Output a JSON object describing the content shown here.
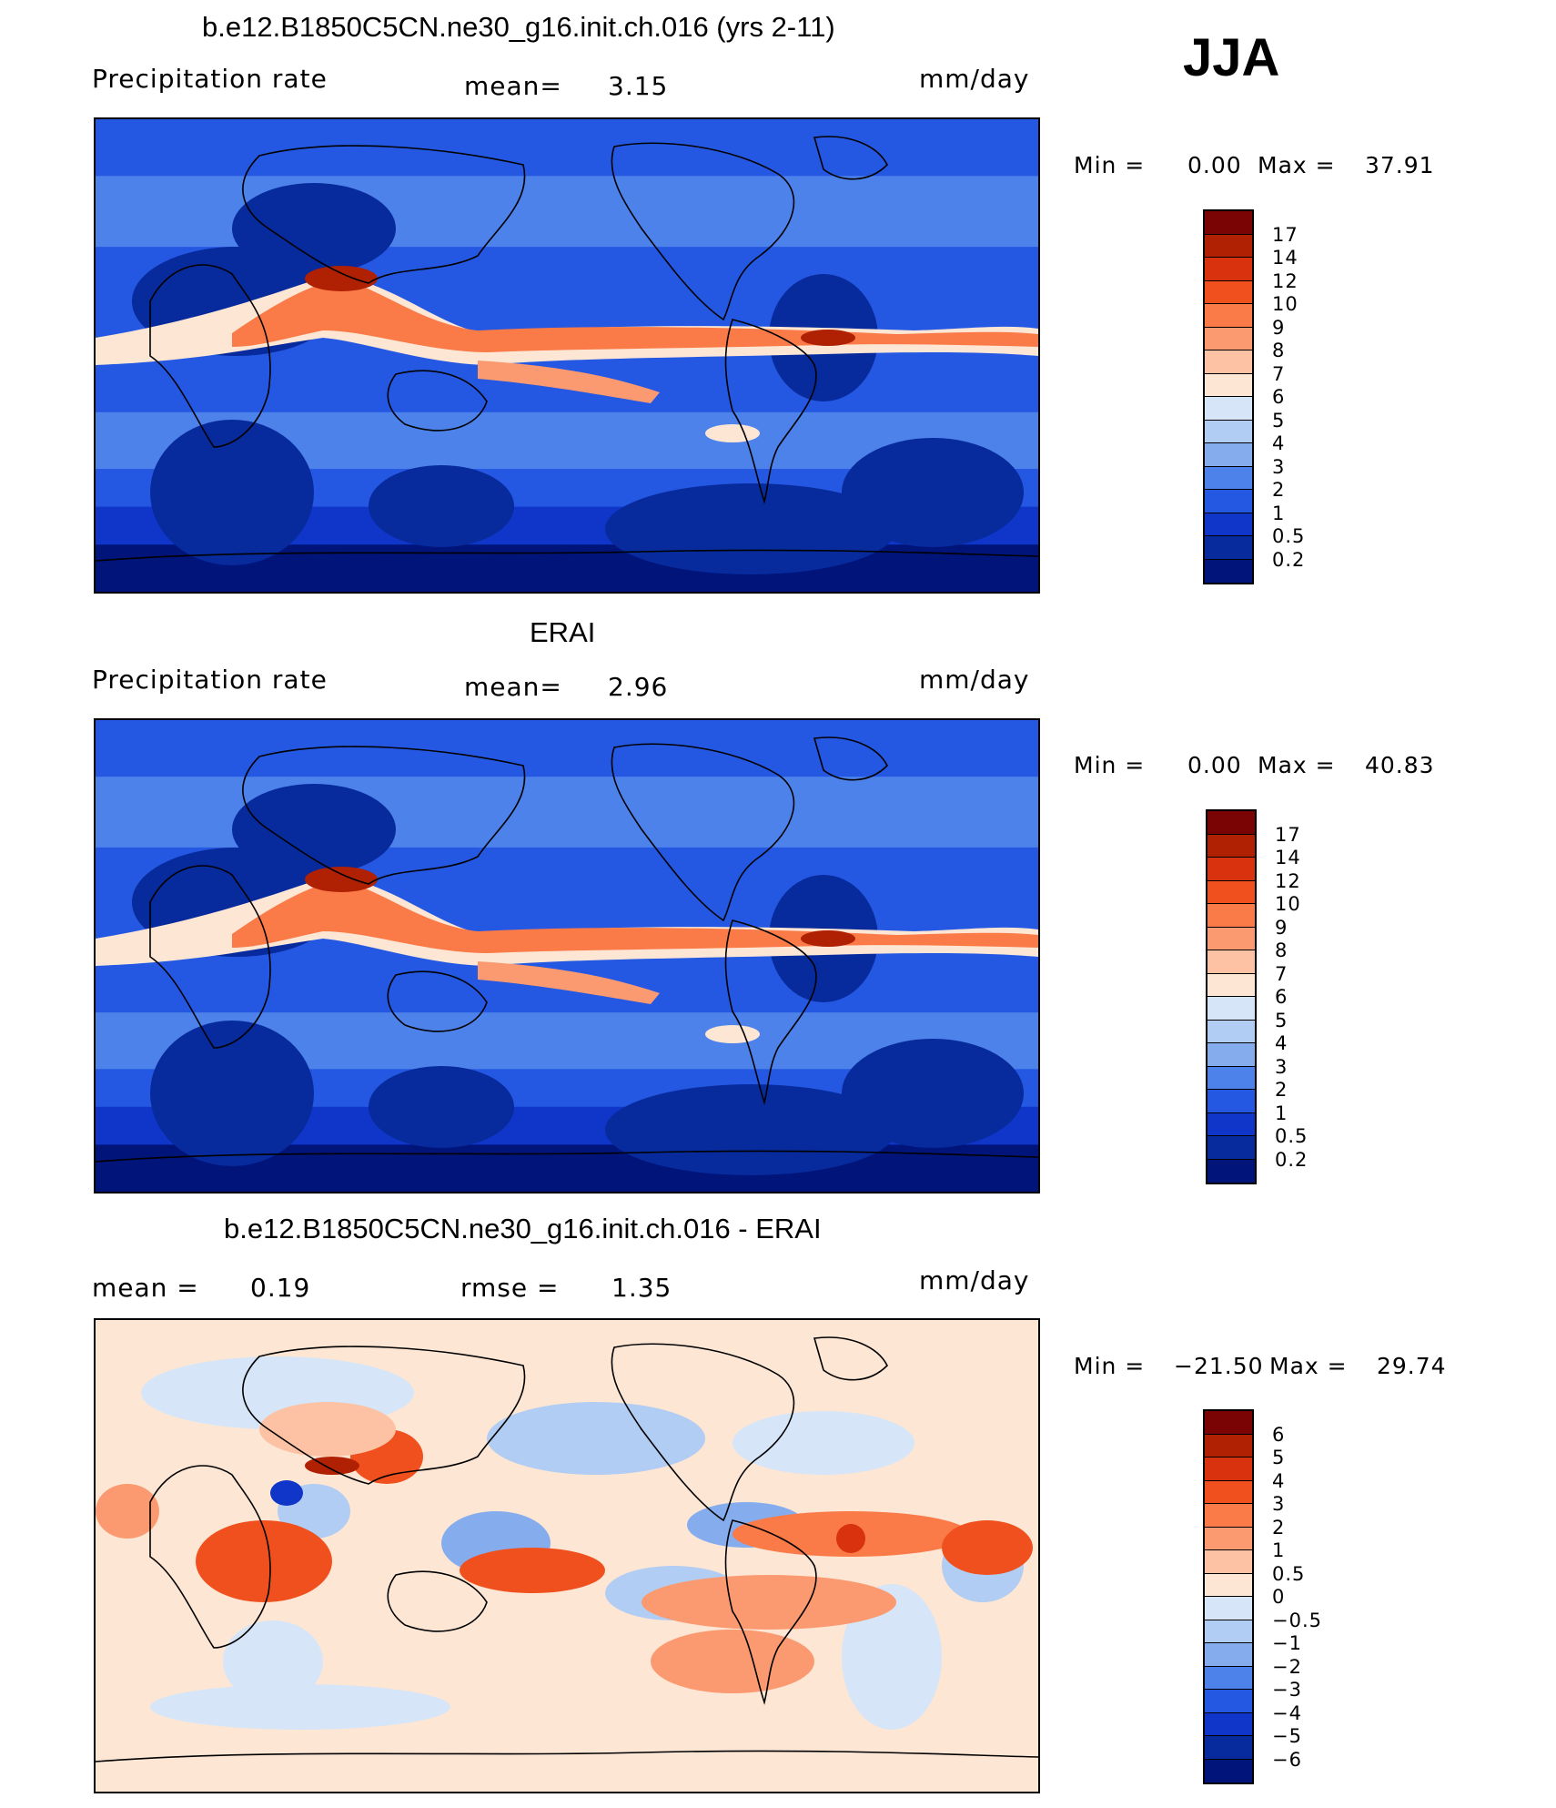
{
  "season": "JJA",
  "panels": [
    {
      "title": "b.e12.B1850C5CN.ne30_g16.init.ch.016 (yrs 2-11)",
      "left_label": "Precipitation  rate",
      "center_label": "mean=",
      "center_value": "3.15",
      "units": "mm/day",
      "min_label": "Min  =",
      "min_value": "0.00",
      "max_label": "Max  =",
      "max_value": "37.91",
      "kind": "abs",
      "colorbar_labels": [
        "17",
        "14",
        "12",
        "10",
        "9",
        "8",
        "7",
        "6",
        "5",
        "4",
        "3",
        "2",
        "1",
        "0.5",
        "0.2"
      ],
      "colorbar_colors": [
        "#7a0403",
        "#b02003",
        "#d8330e",
        "#f0501e",
        "#fa7a48",
        "#fb9a70",
        "#fdc2a3",
        "#fde6d4",
        "#d6e6f8",
        "#b2cdf3",
        "#85adee",
        "#4d82ea",
        "#2458e2",
        "#0f36c8",
        "#072a9c",
        "#00147a"
      ]
    },
    {
      "title": "ERAI",
      "left_label": "Precipitation  rate",
      "center_label": "mean=",
      "center_value": "2.96",
      "units": "mm/day",
      "min_label": "Min  =",
      "min_value": "0.00",
      "max_label": "Max  =",
      "max_value": "40.83",
      "kind": "abs",
      "colorbar_labels": [
        "17",
        "14",
        "12",
        "10",
        "9",
        "8",
        "7",
        "6",
        "5",
        "4",
        "3",
        "2",
        "1",
        "0.5",
        "0.2"
      ],
      "colorbar_colors": [
        "#7a0403",
        "#b02003",
        "#d8330e",
        "#f0501e",
        "#fa7a48",
        "#fb9a70",
        "#fdc2a3",
        "#fde6d4",
        "#d6e6f8",
        "#b2cdf3",
        "#85adee",
        "#4d82ea",
        "#2458e2",
        "#0f36c8",
        "#072a9c",
        "#00147a"
      ]
    },
    {
      "title": "b.e12.B1850C5CN.ne30_g16.init.ch.016 - ERAI",
      "left_label": "mean  =",
      "left_value": "0.19",
      "center_label": "rmse  =",
      "center_value": "1.35",
      "units": "mm/day",
      "min_label": "Min  =",
      "min_value": "−21.50",
      "max_label": "Max  =",
      "max_value": "29.74",
      "kind": "diff",
      "colorbar_labels": [
        "6",
        "5",
        "4",
        "3",
        "2",
        "1",
        "0.5",
        "0",
        "−0.5",
        "−1",
        "−2",
        "−3",
        "−4",
        "−5",
        "−6"
      ],
      "colorbar_colors": [
        "#7a0403",
        "#b02003",
        "#d8330e",
        "#f0501e",
        "#fa7a48",
        "#fb9a70",
        "#fdc2a3",
        "#fde6d4",
        "#d6e6f8",
        "#b2cdf3",
        "#85adee",
        "#4d82ea",
        "#2458e2",
        "#0f36c8",
        "#072a9c",
        "#00147a"
      ]
    }
  ]
}
